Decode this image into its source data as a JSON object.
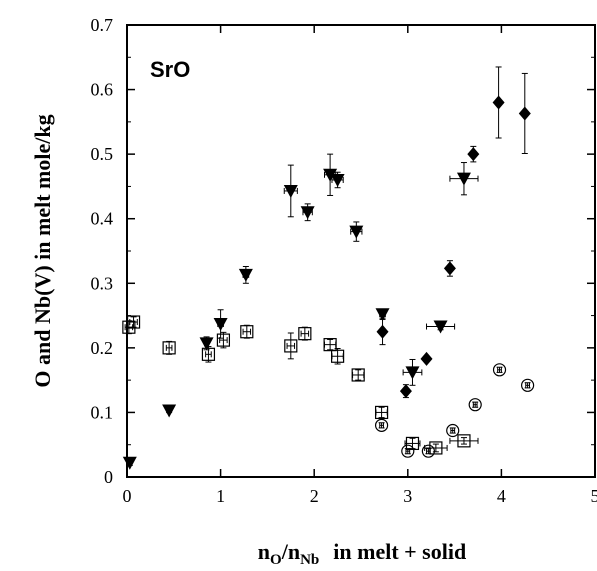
{
  "chart_data": {
    "type": "scatter",
    "annotation": "SrO",
    "ylabel": "O and Nb(V) in melt mole/kg",
    "xlabel_parts": {
      "n1": "n",
      "sub1": "O",
      "slash": "/",
      "n2": "n",
      "sub2": "Nb",
      "rest": "in melt + solid"
    },
    "xlim": [
      0,
      5
    ],
    "ylim": [
      0,
      0.7
    ],
    "x_ticks": [
      "0",
      "1",
      "2",
      "3",
      "4",
      "5"
    ],
    "y_ticks": [
      "0",
      "0.1",
      "0.2",
      "0.3",
      "0.4",
      "0.5",
      "0.6",
      "0.7"
    ],
    "grid": false,
    "legend": "none",
    "series": [
      {
        "marker": "triangle-down",
        "points": [
          {
            "x": 0.03,
            "y": 0.022,
            "xe": 0.02,
            "ye": 0.004
          },
          {
            "x": 0.45,
            "y": 0.103,
            "xe": 0.02,
            "ye": 0.003
          },
          {
            "x": 0.85,
            "y": 0.207,
            "xe": 0.02,
            "ye": 0.01
          },
          {
            "x": 1.0,
            "y": 0.237,
            "xe": 0.03,
            "ye": 0.022
          },
          {
            "x": 1.27,
            "y": 0.313,
            "xe": 0.03,
            "ye": 0.013
          },
          {
            "x": 1.75,
            "y": 0.443,
            "xe": 0.07,
            "ye": 0.04
          },
          {
            "x": 1.93,
            "y": 0.41,
            "xe": 0.05,
            "ye": 0.013
          },
          {
            "x": 2.17,
            "y": 0.468,
            "xe": 0.06,
            "ye": 0.032
          },
          {
            "x": 2.25,
            "y": 0.46,
            "xe": 0.06,
            "ye": 0.012
          },
          {
            "x": 2.45,
            "y": 0.38,
            "xe": 0.06,
            "ye": 0.015
          },
          {
            "x": 2.73,
            "y": 0.252,
            "xe": 0.03,
            "ye": 0.008
          },
          {
            "x": 3.05,
            "y": 0.162,
            "xe": 0.1,
            "ye": 0.02
          },
          {
            "x": 3.35,
            "y": 0.233,
            "xe": 0.15,
            "ye": 0.005
          },
          {
            "x": 3.6,
            "y": 0.462,
            "xe": 0.15,
            "ye": 0.025
          }
        ]
      },
      {
        "marker": "diamond",
        "points": [
          {
            "x": 2.73,
            "y": 0.225,
            "xe": 0.02,
            "ye": 0.02
          },
          {
            "x": 2.98,
            "y": 0.133,
            "xe": 0.02,
            "ye": 0.01
          },
          {
            "x": 3.2,
            "y": 0.183,
            "xe": 0.02,
            "ye": 0.004
          },
          {
            "x": 3.45,
            "y": 0.323,
            "xe": 0.02,
            "ye": 0.012
          },
          {
            "x": 3.7,
            "y": 0.5,
            "xe": 0.03,
            "ye": 0.012
          },
          {
            "x": 3.97,
            "y": 0.58,
            "xe": 0.03,
            "ye": 0.055
          },
          {
            "x": 4.25,
            "y": 0.563,
            "xe": 0.03,
            "ye": 0.062
          }
        ]
      },
      {
        "marker": "square-open",
        "points": [
          {
            "x": 0.02,
            "y": 0.232,
            "xe": 0.04,
            "ye": 0.01
          },
          {
            "x": 0.07,
            "y": 0.24,
            "xe": 0.04,
            "ye": 0.008
          },
          {
            "x": 0.45,
            "y": 0.2,
            "xe": 0.03,
            "ye": 0.01
          },
          {
            "x": 0.87,
            "y": 0.19,
            "xe": 0.03,
            "ye": 0.012
          },
          {
            "x": 1.03,
            "y": 0.212,
            "xe": 0.04,
            "ye": 0.012
          },
          {
            "x": 1.28,
            "y": 0.225,
            "xe": 0.04,
            "ye": 0.01
          },
          {
            "x": 1.75,
            "y": 0.203,
            "xe": 0.04,
            "ye": 0.02
          },
          {
            "x": 1.9,
            "y": 0.222,
            "xe": 0.04,
            "ye": 0.01
          },
          {
            "x": 2.17,
            "y": 0.205,
            "xe": 0.06,
            "ye": 0.008
          },
          {
            "x": 2.25,
            "y": 0.187,
            "xe": 0.06,
            "ye": 0.012
          },
          {
            "x": 2.47,
            "y": 0.158,
            "xe": 0.06,
            "ye": 0.008
          },
          {
            "x": 2.72,
            "y": 0.1,
            "xe": 0.06,
            "ye": 0.008
          },
          {
            "x": 3.05,
            "y": 0.052,
            "xe": 0.08,
            "ye": 0.008
          },
          {
            "x": 3.3,
            "y": 0.045,
            "xe": 0.12,
            "ye": 0.006
          },
          {
            "x": 3.6,
            "y": 0.056,
            "xe": 0.15,
            "ye": 0.005
          }
        ]
      },
      {
        "marker": "circle-open",
        "points": [
          {
            "x": 2.72,
            "y": 0.08,
            "xe": 0.02,
            "ye": 0.004
          },
          {
            "x": 3.0,
            "y": 0.04,
            "xe": 0.02,
            "ye": 0.004
          },
          {
            "x": 3.22,
            "y": 0.04,
            "xe": 0.02,
            "ye": 0.004
          },
          {
            "x": 3.48,
            "y": 0.072,
            "xe": 0.02,
            "ye": 0.004
          },
          {
            "x": 3.72,
            "y": 0.112,
            "xe": 0.02,
            "ye": 0.004
          },
          {
            "x": 3.98,
            "y": 0.166,
            "xe": 0.02,
            "ye": 0.004
          },
          {
            "x": 4.28,
            "y": 0.142,
            "xe": 0.02,
            "ye": 0.004
          }
        ]
      }
    ]
  }
}
